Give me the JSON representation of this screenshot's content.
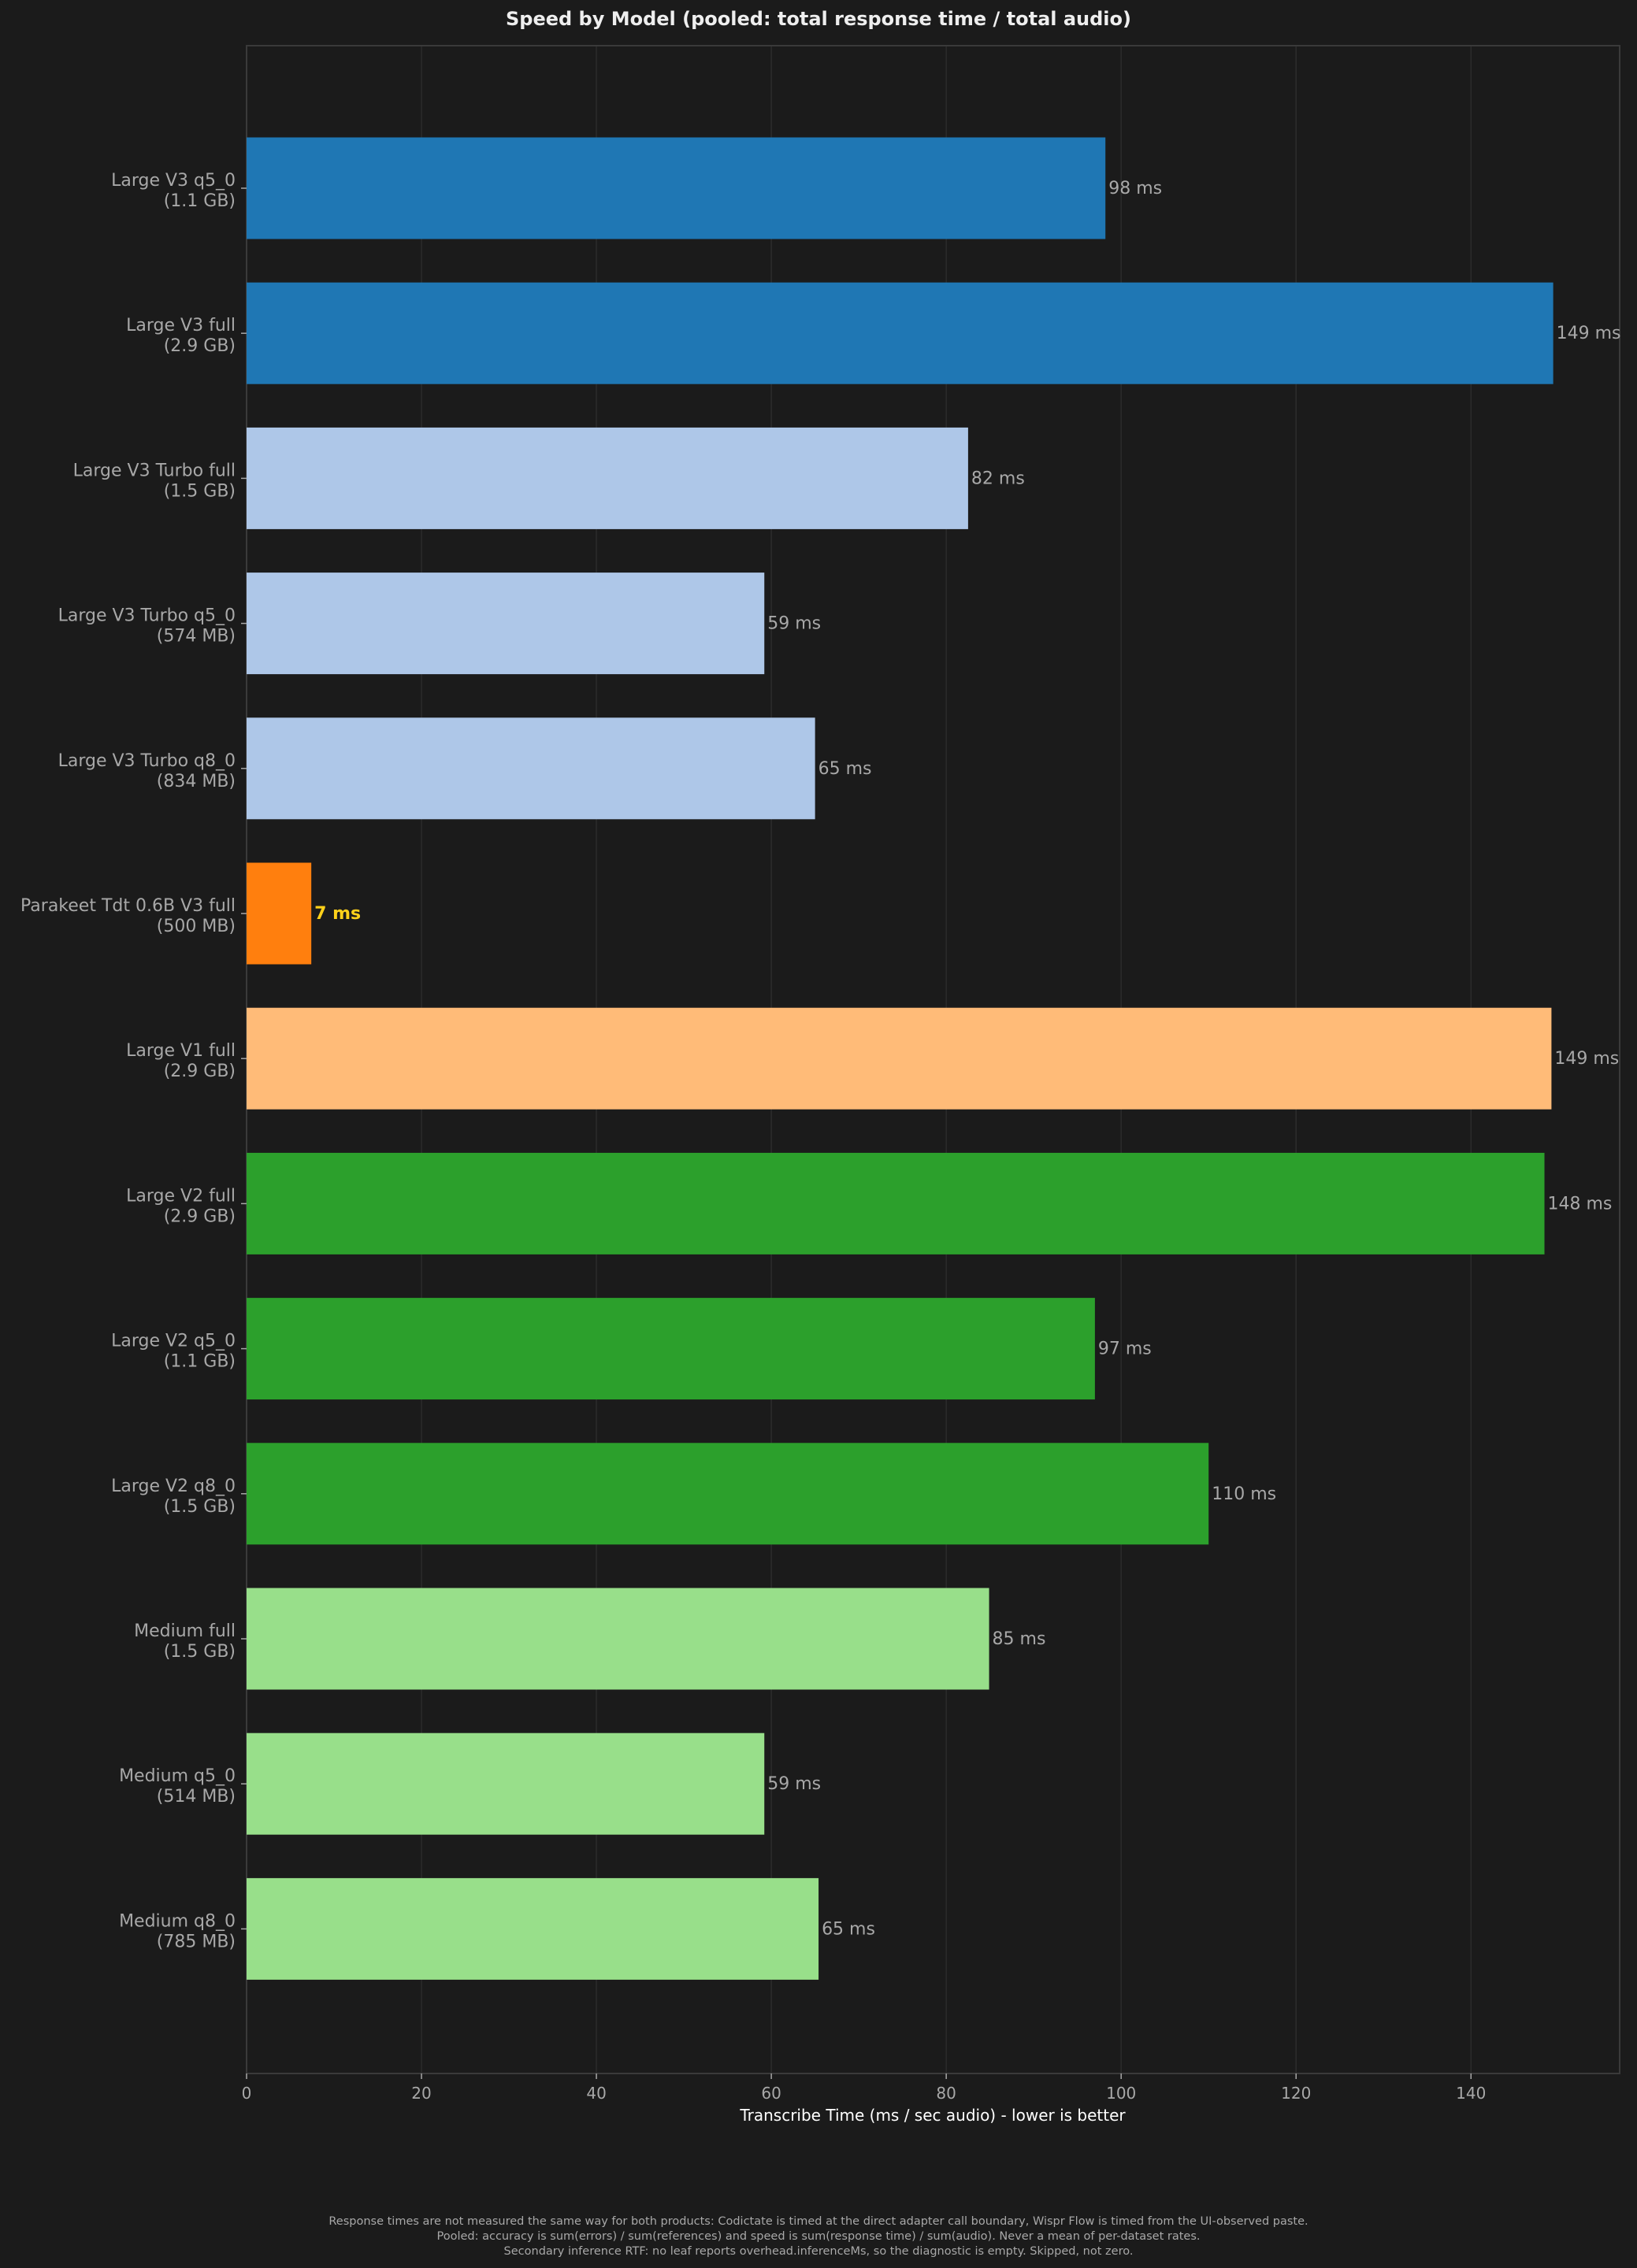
{
  "chart_data": {
    "type": "bar",
    "orientation": "horizontal",
    "title": "Speed by Model (pooled: total response time / total audio)",
    "xlabel": "Transcribe Time (ms / sec audio) - lower is better",
    "xlim": [
      0,
      157
    ],
    "xticks": [
      0,
      20,
      40,
      60,
      80,
      100,
      120,
      140
    ],
    "grid": "vertical",
    "value_suffix": " ms",
    "bars": [
      {
        "name": "Large V3 q5_0",
        "size": "(1.1 GB)",
        "value": 98.2,
        "label": "98 ms",
        "color": "#1f77b4"
      },
      {
        "name": "Large V3 full",
        "size": "(2.9 GB)",
        "value": 149.4,
        "label": "149 ms",
        "color": "#1f77b4"
      },
      {
        "name": "Large V3 Turbo full",
        "size": "(1.5 GB)",
        "value": 82.5,
        "label": "82 ms",
        "color": "#aec7e8"
      },
      {
        "name": "Large V3 Turbo q5_0",
        "size": "(574 MB)",
        "value": 59.2,
        "label": "59 ms",
        "color": "#aec7e8"
      },
      {
        "name": "Large V3 Turbo q8_0",
        "size": "(834 MB)",
        "value": 65.0,
        "label": "65 ms",
        "color": "#aec7e8"
      },
      {
        "name": "Parakeet Tdt 0.6B V3 full",
        "size": "(500 MB)",
        "value": 7.4,
        "label": "7 ms",
        "color": "#ff7f0e",
        "highlight": true
      },
      {
        "name": "Large V1 full",
        "size": "(2.9 GB)",
        "value": 149.2,
        "label": "149 ms",
        "color": "#ffbb78"
      },
      {
        "name": "Large V2 full",
        "size": "(2.9 GB)",
        "value": 148.4,
        "label": "148 ms",
        "color": "#2ca02c"
      },
      {
        "name": "Large V2 q5_0",
        "size": "(1.1 GB)",
        "value": 97.0,
        "label": "97 ms",
        "color": "#2ca02c"
      },
      {
        "name": "Large V2 q8_0",
        "size": "(1.5 GB)",
        "value": 110.0,
        "label": "110 ms",
        "color": "#2ca02c"
      },
      {
        "name": "Medium full",
        "size": "(1.5 GB)",
        "value": 84.9,
        "label": "85 ms",
        "color": "#98df8a"
      },
      {
        "name": "Medium q5_0",
        "size": "(514 MB)",
        "value": 59.2,
        "label": "59 ms",
        "color": "#98df8a"
      },
      {
        "name": "Medium q8_0",
        "size": "(785 MB)",
        "value": 65.4,
        "label": "65 ms",
        "color": "#98df8a"
      }
    ],
    "colors": {
      "background": "#1b1b1b",
      "axes_edge": "#3a3a3a",
      "grid": "#2c2c2c",
      "tick_text": "#a8a8a8",
      "title_text": "#eeeeee",
      "value_text": "#a8a8a8",
      "highlight_text": "#ffd11a"
    }
  },
  "footer": {
    "lines": [
      "Response times are not measured the same way for both products: Codictate is timed at the direct adapter call boundary, Wispr Flow is timed from the UI-observed paste.",
      "Pooled: accuracy is sum(errors) / sum(references) and speed is sum(response time) / sum(audio). Never a mean of per-dataset rates.",
      "Secondary inference RTF: no leaf reports overhead.inferenceMs, so the diagnostic is empty. Skipped, not zero."
    ]
  }
}
